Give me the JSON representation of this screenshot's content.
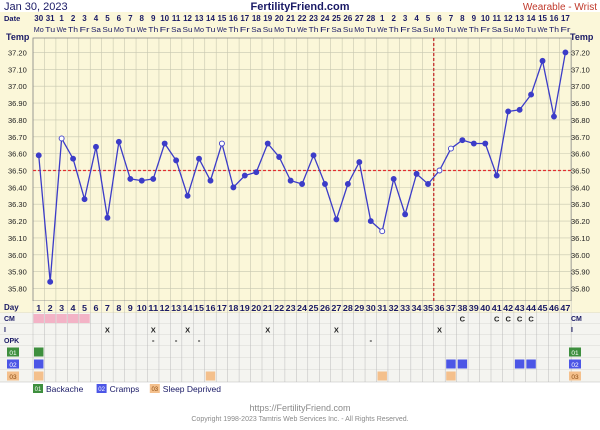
{
  "header": {
    "date": "Jan 30, 2023",
    "site": "FertilityFriend.com",
    "thermometer": "Wearable - Wrist"
  },
  "colors": {
    "chart_bg": "#fbf7d9",
    "grid": "#c7c7b0",
    "line": "#3c3cc8",
    "coverline": "#e03030",
    "ovulation": "#c02020",
    "accent_text": "#1a1a66",
    "red_text": "#c0392b",
    "menses": "#f3b3c6",
    "backache": "#3e8f3e",
    "cramps": "#4c56e6",
    "sleep": "#f4c08c",
    "footer_text": "#8a8a8a"
  },
  "axes": {
    "temp_label": "Temp",
    "date_label": "Date",
    "y_ticks": [
      "37.20",
      "37.10",
      "37.00",
      "36.90",
      "36.80",
      "36.70",
      "36.60",
      "36.50",
      "36.40",
      "36.30",
      "36.20",
      "36.10",
      "36.00",
      "35.90",
      "35.80"
    ],
    "dates_top": [
      "30",
      "31",
      "1",
      "2",
      "3",
      "4",
      "5",
      "6",
      "7",
      "8",
      "9",
      "10",
      "11",
      "12",
      "13",
      "14",
      "15",
      "16",
      "17",
      "18",
      "19",
      "20",
      "21",
      "22",
      "23",
      "24",
      "25",
      "26",
      "27",
      "28",
      "1",
      "2",
      "3",
      "4",
      "5",
      "6",
      "7",
      "8",
      "9",
      "10",
      "11",
      "12",
      "13",
      "14",
      "15",
      "16",
      "17"
    ],
    "weekdays": [
      "Mo",
      "Tu",
      "We",
      "Th",
      "Fr",
      "Sa",
      "Su",
      "Mo",
      "Tu",
      "We",
      "Th",
      "Fr",
      "Sa",
      "Su",
      "Mo",
      "Tu",
      "We",
      "Th",
      "Fr",
      "Sa",
      "Su",
      "Mo",
      "Tu",
      "We",
      "Th",
      "Fr",
      "Sa",
      "Su",
      "Mo",
      "Tu",
      "We",
      "Th",
      "Fr",
      "Sa",
      "Su",
      "Mo",
      "Tu",
      "We",
      "Th",
      "Fr",
      "Sa",
      "Su",
      "Mo",
      "Tu",
      "We",
      "Th",
      "Fr"
    ]
  },
  "chart_data": {
    "type": "line",
    "title": "",
    "xlabel": "Date",
    "ylabel": "Temp",
    "ylim": [
      35.75,
      37.25
    ],
    "x": [
      1,
      2,
      3,
      4,
      5,
      6,
      7,
      8,
      9,
      10,
      11,
      12,
      13,
      14,
      15,
      16,
      17,
      18,
      19,
      20,
      21,
      22,
      23,
      24,
      25,
      26,
      27,
      28,
      29,
      30,
      31,
      32,
      33,
      34,
      35,
      36,
      37,
      38,
      39,
      40,
      41,
      42,
      43,
      44,
      45,
      46,
      47
    ],
    "series": [
      {
        "values": [
          36.59,
          35.84,
          36.69,
          36.57,
          36.33,
          36.64,
          36.22,
          36.67,
          36.45,
          36.44,
          36.45,
          36.66,
          36.56,
          36.35,
          36.57,
          36.44,
          36.66,
          36.4,
          36.47,
          36.49,
          36.66,
          36.58,
          36.44,
          36.42,
          36.59,
          36.42,
          36.21,
          36.42,
          36.55,
          36.2,
          36.14,
          36.45,
          36.24,
          36.48,
          36.42,
          36.5,
          36.63,
          36.68,
          36.66,
          36.66,
          36.47,
          36.85,
          36.86,
          36.95,
          37.15,
          36.82,
          37.2
        ],
        "open_points": [
          3,
          17,
          31,
          36,
          37
        ]
      }
    ],
    "coverline": 36.5,
    "ovulation_day": 35,
    "grid": true,
    "legend_placement": "bottom-left"
  },
  "rows": {
    "day_label": "Day",
    "day_numbers": [
      "1",
      "2",
      "3",
      "4",
      "5",
      "6",
      "7",
      "8",
      "9",
      "10",
      "11",
      "12",
      "13",
      "14",
      "15",
      "16",
      "17",
      "18",
      "19",
      "20",
      "21",
      "22",
      "23",
      "24",
      "25",
      "26",
      "27",
      "28",
      "29",
      "30",
      "31",
      "32",
      "33",
      "34",
      "35",
      "36",
      "37",
      "38",
      "39",
      "40",
      "41",
      "42",
      "43",
      "44",
      "45",
      "46",
      "47"
    ],
    "cm_label": "CM",
    "cm_values": [
      {
        "day": 38,
        "text": "C"
      },
      {
        "day": 41,
        "text": "C"
      },
      {
        "day": 42,
        "text": "C"
      },
      {
        "day": 43,
        "text": "C"
      },
      {
        "day": 44,
        "text": "C"
      }
    ],
    "menses_days": [
      1,
      2,
      3,
      4,
      5
    ],
    "intercourse_label": "I",
    "intercourse_days": [
      7,
      11,
      14,
      21,
      27,
      36
    ],
    "opk_label": "OPK",
    "opk_days": [
      11,
      13,
      15,
      30
    ],
    "custom_rows": [
      {
        "code": "01",
        "label": "Backache",
        "days": [
          1
        ]
      },
      {
        "code": "02",
        "label": "Cramps",
        "days": [
          1,
          37,
          38,
          43,
          44
        ]
      },
      {
        "code": "03",
        "label": "Sleep Deprived",
        "days": [
          1,
          16,
          31,
          37
        ]
      }
    ]
  },
  "legend": [
    {
      "code": "01",
      "label": "Backache"
    },
    {
      "code": "02",
      "label": "Cramps"
    },
    {
      "code": "03",
      "label": "Sleep Deprived"
    }
  ],
  "footer": {
    "url": "https://FertilityFriend.com",
    "copyright": "Copyright 1998-2023 Tamtris Web Services Inc. - All Rights Reserved."
  }
}
